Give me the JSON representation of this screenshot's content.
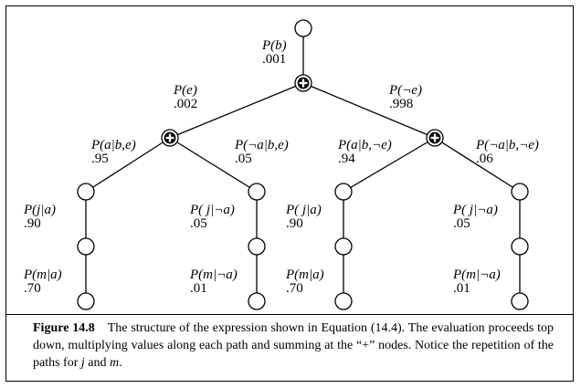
{
  "figure": {
    "nodes": [
      {
        "id": "root",
        "kind": "leaf"
      },
      {
        "id": "sum-b",
        "kind": "plus"
      },
      {
        "id": "sum-e",
        "kind": "plus"
      },
      {
        "id": "sum-not-e",
        "kind": "plus"
      },
      {
        "id": "n1",
        "kind": "leaf"
      },
      {
        "id": "n2",
        "kind": "leaf"
      },
      {
        "id": "n3",
        "kind": "leaf"
      },
      {
        "id": "n4",
        "kind": "leaf"
      },
      {
        "id": "n5",
        "kind": "leaf"
      },
      {
        "id": "n6",
        "kind": "leaf"
      },
      {
        "id": "n7",
        "kind": "leaf"
      },
      {
        "id": "n8",
        "kind": "leaf"
      },
      {
        "id": "n9",
        "kind": "leaf"
      },
      {
        "id": "n10",
        "kind": "leaf"
      },
      {
        "id": "n11",
        "kind": "leaf"
      },
      {
        "id": "n12",
        "kind": "leaf"
      }
    ],
    "edges": [
      [
        "root",
        "sum-b"
      ],
      [
        "sum-b",
        "sum-e"
      ],
      [
        "sum-b",
        "sum-not-e"
      ],
      [
        "sum-e",
        "n1"
      ],
      [
        "sum-e",
        "n2"
      ],
      [
        "sum-not-e",
        "n3"
      ],
      [
        "sum-not-e",
        "n4"
      ],
      [
        "n1",
        "n5"
      ],
      [
        "n5",
        "n9"
      ],
      [
        "n2",
        "n6"
      ],
      [
        "n6",
        "n10"
      ],
      [
        "n3",
        "n7"
      ],
      [
        "n7",
        "n11"
      ],
      [
        "n4",
        "n8"
      ],
      [
        "n8",
        "n12"
      ]
    ],
    "labels": [
      {
        "id": "pb",
        "name": "P(b)",
        "value": ".001"
      },
      {
        "id": "pe",
        "name": "P(e)",
        "value": ".002"
      },
      {
        "id": "pne",
        "name": "P(¬e)",
        "value": ".998"
      },
      {
        "id": "pabe",
        "name": "P(a|b,e)",
        "value": ".95"
      },
      {
        "id": "pnabe",
        "name": "P(¬a|b,e)",
        "value": ".05"
      },
      {
        "id": "pabne",
        "name": "P(a|b,¬e)",
        "value": ".94"
      },
      {
        "id": "pnabne",
        "name": "P(¬a|b,¬e)",
        "value": ".06"
      },
      {
        "id": "pja1",
        "name": "P(j|a)",
        "value": ".90"
      },
      {
        "id": "pjna1",
        "name": "P( j|¬a)",
        "value": ".05"
      },
      {
        "id": "pja2",
        "name": "P( j|a)",
        "value": ".90"
      },
      {
        "id": "pjna2",
        "name": "P( j|¬a)",
        "value": ".05"
      },
      {
        "id": "pma1",
        "name": "P(m|a)",
        "value": ".70"
      },
      {
        "id": "pmna1",
        "name": "P(m|¬a)",
        "value": ".01"
      },
      {
        "id": "pma2",
        "name": "P(m|a)",
        "value": ".70"
      },
      {
        "id": "pmna2",
        "name": "P(m|¬a)",
        "value": ".01"
      }
    ]
  },
  "caption": {
    "figure_label": "Figure 14.8",
    "text_1": "The structure of the expression shown in Equation (14.4). The evaluation proceeds top down, multiplying values along each path and summing at the “+” nodes. Notice the repetition of the paths for ",
    "var_j": "j",
    "text_2": " and ",
    "var_m": "m",
    "text_3": "."
  }
}
